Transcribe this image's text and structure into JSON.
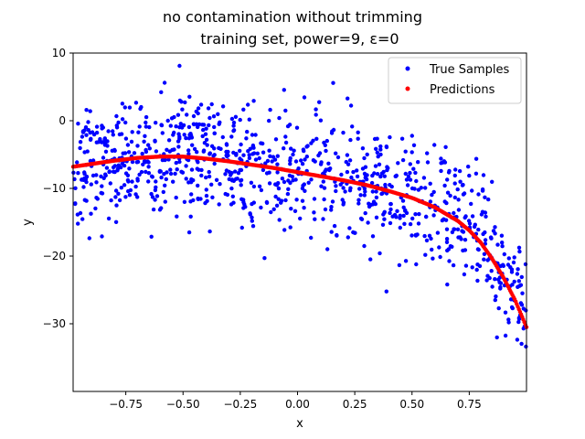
{
  "chart_data": {
    "type": "scatter",
    "title_line1": "no contamination without trimming",
    "title_line2": "training set, power=9, ε=0",
    "xlabel": "x",
    "ylabel": "y",
    "xlim": [
      -0.98,
      1.0
    ],
    "ylim": [
      -40,
      10
    ],
    "xticks": [
      -0.75,
      -0.5,
      -0.25,
      0.0,
      0.25,
      0.5,
      0.75
    ],
    "xtick_labels": [
      "−0.75",
      "−0.50",
      "−0.25",
      "0.00",
      "0.25",
      "0.50",
      "0.75"
    ],
    "yticks": [
      -30,
      -20,
      -10,
      0,
      10
    ],
    "ytick_labels": [
      "−30",
      "−20",
      "−10",
      "0",
      "10"
    ],
    "grid": false,
    "legend_position": "top-right",
    "series": [
      {
        "name": "True Samples",
        "color": "#0000ff",
        "description_points": "noisy samples around the polynomial curve, ~1000 points, noise std ~4.5",
        "sample_count": 1000,
        "noise_std": 4.5
      },
      {
        "name": "Predictions",
        "color": "#ff0000",
        "curve_points": [
          [
            -0.98,
            -6.8
          ],
          [
            -0.9,
            -6.4
          ],
          [
            -0.8,
            -5.9
          ],
          [
            -0.7,
            -5.5
          ],
          [
            -0.6,
            -5.3
          ],
          [
            -0.5,
            -5.3
          ],
          [
            -0.4,
            -5.6
          ],
          [
            -0.3,
            -6.0
          ],
          [
            -0.2,
            -6.5
          ],
          [
            -0.1,
            -7.0
          ],
          [
            0.0,
            -7.6
          ],
          [
            0.1,
            -8.2
          ],
          [
            0.2,
            -8.8
          ],
          [
            0.3,
            -9.5
          ],
          [
            0.4,
            -10.4
          ],
          [
            0.5,
            -11.4
          ],
          [
            0.6,
            -12.8
          ],
          [
            0.7,
            -14.8
          ],
          [
            0.75,
            -16.2
          ],
          [
            0.8,
            -18.0
          ],
          [
            0.85,
            -20.4
          ],
          [
            0.9,
            -23.2
          ],
          [
            0.95,
            -26.5
          ],
          [
            1.0,
            -30.5
          ]
        ]
      }
    ]
  }
}
